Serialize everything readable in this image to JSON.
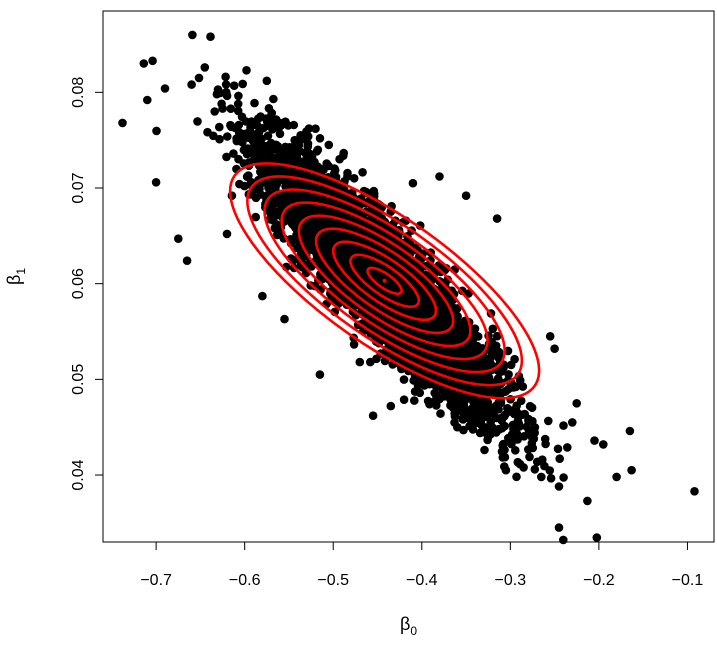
{
  "chart_data": {
    "type": "scatter",
    "title": "",
    "xlabel": {
      "symbol": "β",
      "subscript": "0"
    },
    "ylabel": {
      "symbol": "β",
      "subscript": "1"
    },
    "xlim": [
      -0.76,
      -0.07
    ],
    "ylim": [
      0.033,
      0.0885
    ],
    "xticks": [
      -0.7,
      -0.6,
      -0.5,
      -0.4,
      -0.3,
      -0.2,
      -0.1
    ],
    "xtick_labels": [
      "−0.7",
      "−0.6",
      "−0.5",
      "−0.4",
      "−0.3",
      "−0.2",
      "−0.1"
    ],
    "yticks": [
      0.04,
      0.05,
      0.06,
      0.07,
      0.08
    ],
    "ytick_labels": [
      "0.04",
      "0.05",
      "0.06",
      "0.07",
      "0.08"
    ],
    "grid": false,
    "colors": {
      "points": "#000000",
      "contours": "#ff0000"
    },
    "cloud": {
      "center": [
        -0.445,
        0.0603
      ],
      "sd": [
        0.065,
        0.0068
      ],
      "correlation": -0.9,
      "n_points": 5000
    },
    "outliers": [
      {
        "x": -0.738,
        "y": 0.0768
      },
      {
        "x": -0.704,
        "y": 0.0833
      },
      {
        "x": -0.659,
        "y": 0.086
      },
      {
        "x": -0.645,
        "y": 0.0826
      },
      {
        "x": -0.69,
        "y": 0.0804
      },
      {
        "x": -0.71,
        "y": 0.0792
      },
      {
        "x": -0.7,
        "y": 0.0706
      },
      {
        "x": -0.675,
        "y": 0.0647
      },
      {
        "x": -0.665,
        "y": 0.0624
      },
      {
        "x": -0.598,
        "y": 0.0823
      },
      {
        "x": -0.575,
        "y": 0.0812
      },
      {
        "x": -0.52,
        "y": 0.0762
      },
      {
        "x": -0.505,
        "y": 0.0745
      },
      {
        "x": -0.092,
        "y": 0.0383
      },
      {
        "x": -0.245,
        "y": 0.0345
      },
      {
        "x": -0.213,
        "y": 0.0373
      },
      {
        "x": -0.163,
        "y": 0.0405
      },
      {
        "x": -0.18,
        "y": 0.0398
      },
      {
        "x": -0.195,
        "y": 0.0432
      },
      {
        "x": -0.165,
        "y": 0.0446
      },
      {
        "x": -0.225,
        "y": 0.0475
      },
      {
        "x": -0.265,
        "y": 0.0398
      },
      {
        "x": -0.245,
        "y": 0.0388
      },
      {
        "x": -0.285,
        "y": 0.0408
      },
      {
        "x": -0.23,
        "y": 0.0455
      },
      {
        "x": -0.205,
        "y": 0.0436
      },
      {
        "x": -0.33,
        "y": 0.0523
      },
      {
        "x": -0.47,
        "y": 0.0518
      },
      {
        "x": -0.435,
        "y": 0.0472
      },
      {
        "x": -0.62,
        "y": 0.0652
      },
      {
        "x": -0.58,
        "y": 0.0587
      },
      {
        "x": -0.555,
        "y": 0.0563
      },
      {
        "x": -0.515,
        "y": 0.0505
      },
      {
        "x": -0.455,
        "y": 0.0462
      },
      {
        "x": -0.35,
        "y": 0.0692
      },
      {
        "x": -0.38,
        "y": 0.0712
      },
      {
        "x": -0.41,
        "y": 0.0705
      },
      {
        "x": -0.315,
        "y": 0.0668
      },
      {
        "x": -0.255,
        "y": 0.0545
      },
      {
        "x": -0.25,
        "y": 0.0532
      }
    ],
    "contours": {
      "center": [
        -0.442,
        0.0603
      ],
      "outer_semi_axes": [
        0.2069,
        0.00318
      ],
      "angle_deg": -35.0,
      "levels": 9,
      "inner_scale": 0.11
    },
    "center_marker": {
      "x": -0.442,
      "y": 0.0603
    }
  }
}
